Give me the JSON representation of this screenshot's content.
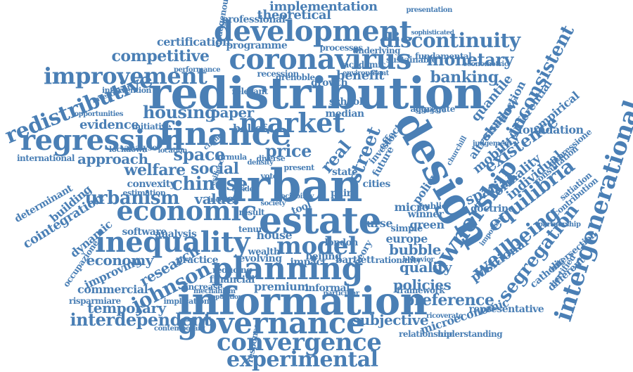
{
  "color": "#4a7fb5",
  "words": [
    "redistribution",
    "urban",
    "development",
    "coronavirus",
    "information",
    "design",
    "inequality",
    "planning",
    "governance",
    "economic",
    "finance",
    "regression",
    "market",
    "estate",
    "improvement",
    "redistributive",
    "convergence",
    "model",
    "ownership",
    "intergenerational",
    "experimental",
    "discontinuity",
    "interdependent",
    "housing",
    "chinese",
    "welfare",
    "urbanism",
    "johnson",
    "inconsistent",
    "equilibria",
    "wellbeing",
    "existence",
    "segregation",
    "space",
    "social",
    "approach",
    "implementation",
    "theoretical",
    "competitive",
    "certification",
    "monetary",
    "banking",
    "street",
    "real",
    "economy",
    "research",
    "quality",
    "policies",
    "bubble",
    "preference",
    "subjective",
    "temporary",
    "mobility",
    "formality",
    "spatial",
    "individual",
    "positional",
    "paper",
    "belief",
    "evidence",
    "price",
    "value",
    "premium",
    "cointegration",
    "professional",
    "programme",
    "benefit",
    "quantile",
    "shadow",
    "foundation",
    "microeconomic",
    "representative",
    "commercial",
    "building",
    "dynamic",
    "improving",
    "software",
    "analysis",
    "house",
    "impact",
    "bartlett",
    "london",
    "europe",
    "green",
    "winner",
    "public",
    "doctrine",
    "curse",
    "state",
    "future",
    "effect",
    "investor",
    "policy",
    "micro",
    "pair",
    "median",
    "school",
    "tool",
    "cities",
    "result",
    "international",
    "determinant",
    "convexity",
    "estimation",
    "practice",
    "financial",
    "increase",
    "informal",
    "framework",
    "relationship",
    "academic",
    "sustainable",
    "fundamental",
    "processes",
    "underlying",
    "recession",
    "grenoble",
    "growth",
    "relevant",
    "environment",
    "intervention",
    "performance",
    "investment",
    "opportunities",
    "initiative",
    "analyse",
    "lockdown",
    "location",
    "beijing",
    "evolving",
    "reducing",
    "wealth",
    "tenure",
    "contemporary",
    "implication",
    "risparmiare",
    "occupazione",
    "empirical",
    "auction",
    "differential",
    "altruism",
    "catholic",
    "certified",
    "different",
    "intersection",
    "contribution",
    "satiation",
    "consultation",
    "depressione",
    "presentation",
    "endogenous",
    "sophisticated",
    "econometric",
    "judgement",
    "simple",
    "rationality",
    "aggregate",
    "spiegare",
    "theory",
    "response",
    "understanding",
    "ricoverato",
    "particular",
    "population",
    "mechanism",
    "important",
    "partnership",
    "churchill",
    "behavior",
    "divide",
    "formula",
    "diverse",
    "voter",
    "present",
    "society",
    "change",
    "resilience",
    "density",
    "income",
    "sociability"
  ]
}
